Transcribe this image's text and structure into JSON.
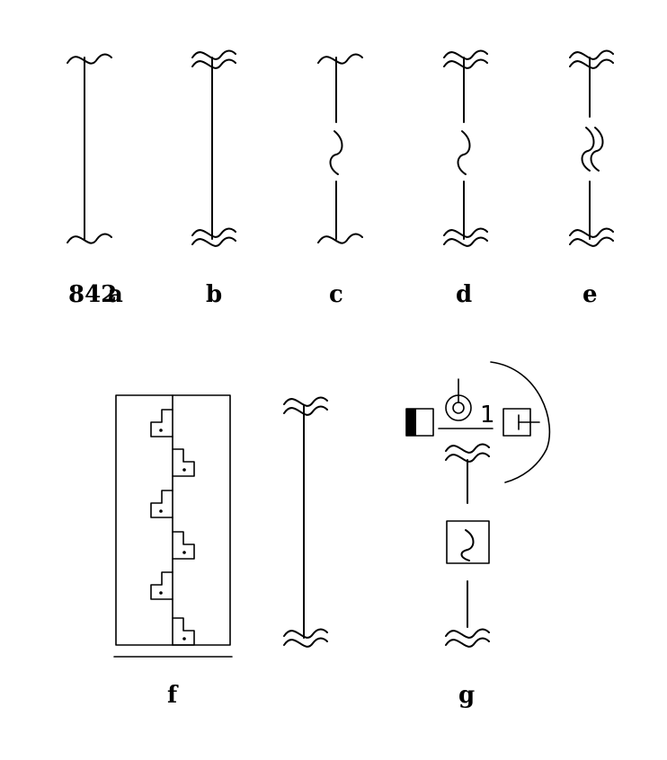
{
  "figure_number": "842",
  "labels": {
    "a": "a",
    "b": "b",
    "c": "c",
    "d": "d",
    "e": "e",
    "f": "f",
    "g": "g"
  },
  "symbol_g": {
    "marker": "1"
  }
}
